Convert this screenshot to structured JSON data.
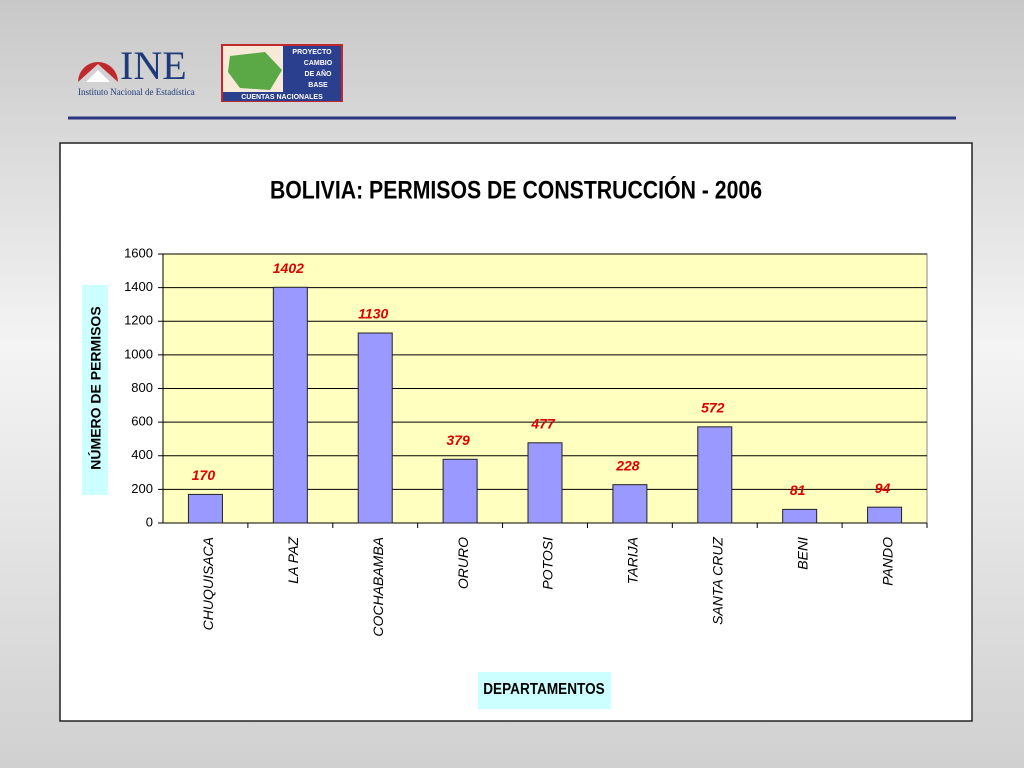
{
  "header": {
    "logo_text": "INE",
    "logo_subtitle": "Instituto Nacional de Estadística",
    "project_lines": [
      "PROYECTO",
      "CAMBIO",
      "DE AÑO",
      "BASE"
    ],
    "project_footer": "CUENTAS NACIONALES"
  },
  "chart_data": {
    "type": "bar",
    "title": "BOLIVIA: PERMISOS DE CONSTRUCCIÓN - 2006",
    "x_label": "DEPARTAMENTOS",
    "y_label": "NÚMERO DE PERMISOS",
    "categories": [
      "CHUQUISACA",
      "LA PAZ",
      "COCHABAMBA",
      "ORURO",
      "POTOSI",
      "TARIJA",
      "SANTA CRUZ",
      "BENI",
      "PANDO"
    ],
    "values": [
      170,
      1402,
      1130,
      379,
      477,
      228,
      572,
      81,
      94
    ],
    "color": "#9999ff",
    "label_color": "#e00000",
    "plot_background": "#ffffc0",
    "ylim": [
      0,
      1600
    ],
    "yticks": [
      0,
      200,
      400,
      600,
      800,
      1000,
      1200,
      1400,
      1600
    ],
    "grid": true
  }
}
